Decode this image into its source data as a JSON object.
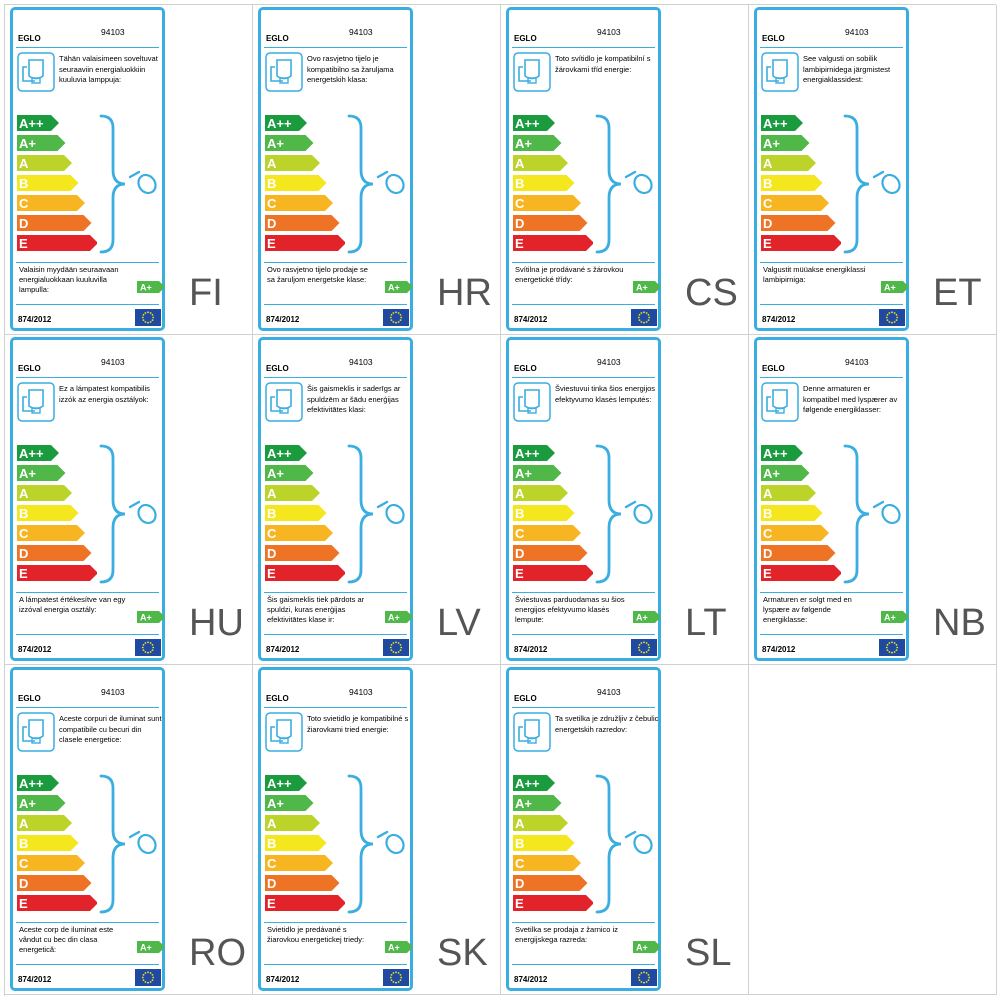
{
  "common": {
    "brand": "EGLO",
    "model": "94103",
    "regulation": "874/2012",
    "classes": [
      "A++",
      "A+",
      "A",
      "B",
      "C",
      "D",
      "E"
    ],
    "compatible_class": "A+",
    "colors": {
      "frame": "#3aaee0",
      "class_colors": [
        "#1a9b3e",
        "#4fb848",
        "#bcd42a",
        "#f5e71d",
        "#f6b521",
        "#ee7324",
        "#e2232a"
      ],
      "eu_flag": "#1f4aa0",
      "eu_stars": "#f5e31a"
    },
    "icons": [
      "lamp-icon",
      "bulb-icon",
      "eu-flag-icon"
    ]
  },
  "labels": [
    {
      "code": "FI",
      "description": "Tähän valaisimeen soveltuvat seuraaviin energialuokkiin kuuluvia lamppuja:",
      "footer": "Valaisin myydään seuraavaan energialuokkaan kuuluvilla lampulla:"
    },
    {
      "code": "HR",
      "description": "Ovo rasvjetno tijelo je kompatibilno sa žaruljama energetskih klasa:",
      "footer": "Ovo rasvjetno tijelo prodaje se sa žaruljom energetske klase:"
    },
    {
      "code": "CS",
      "description": "Toto svítidlo je kompatibilní s žárovkami tříd energie:",
      "footer": "Svítilna je prodávané s žárovkou energetické třídy:"
    },
    {
      "code": "ET",
      "description": "See valgusti on sobilik lambipirnidega järgmistest energiaklassidest:",
      "footer": "Valgustit müüakse energiklassi lambipirniga:"
    },
    {
      "code": "HU",
      "description": "Ez a lámpatest kompatibilis izzók az energia osztályok:",
      "footer": "A lámpatest értékesítve van egy izzóval energia osztály:"
    },
    {
      "code": "LV",
      "description": "Šis gaismeklis ir saderīgs ar spuldzēm ar šādu enerģijas efektivitātes klasi:",
      "footer": "Šis gaismeklis tiek pārdots ar spuldzi, kuras enerģijas efektivitātes klase ir:"
    },
    {
      "code": "LT",
      "description": "Šviestuvui tinka šios energijos efektyvumo klasės lemputės:",
      "footer": "Šviestuvas parduodamas su šios energijos efektyvumo klasės lempute:"
    },
    {
      "code": "NB",
      "description": "Denne armaturen er kompatibel med lyspærer av følgende energiklasser:",
      "footer": "Armaturen er solgt med en lyspære av følgende energiklasse:"
    },
    {
      "code": "RO",
      "description": "Aceste corpuri de iluminat sunt compatibile cu becuri din clasele energetice:",
      "footer": "Aceste corp de iluminat este vândut cu bec din clasa energetică:"
    },
    {
      "code": "SK",
      "description": "Toto svietidlo je kompatibilné s žiarovkami tried energie:",
      "footer": "Svietidlo je predávané s žiarovkou energetickej triedy:"
    },
    {
      "code": "SL",
      "description": "Ta svetilka je združljiv z čebulic energetskih razredov:",
      "footer": "Svetilka se prodaja z žarnico iz energijskega razreda:"
    }
  ]
}
